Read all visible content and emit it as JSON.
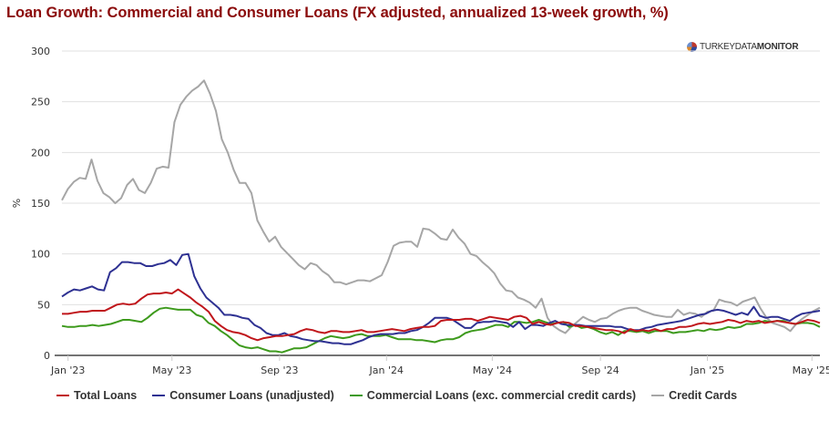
{
  "title": "Loan Growth: Commercial and Consumer Loans (FX adjusted, annualized 13-week growth, %)",
  "logo": {
    "light": "TURKEYDATA",
    "bold": "MONITOR"
  },
  "chart_data": {
    "type": "line",
    "title": "Loan Growth: Commercial and Consumer Loans (FX adjusted, annualized 13-week growth, %)",
    "xlabel": "",
    "ylabel": "%",
    "ylim": [
      0,
      300
    ],
    "yticks": [
      0,
      50,
      100,
      150,
      200,
      250,
      300
    ],
    "grid": true,
    "legend_position": "bottom",
    "x_unit": "weeks since Jan 2023 (approx.)",
    "x_range": [
      -1,
      123
    ],
    "xticks": [
      {
        "label": "Jan '23",
        "x": 0
      },
      {
        "label": "May '23",
        "x": 17
      },
      {
        "label": "Sep '23",
        "x": 34.6
      },
      {
        "label": "Jan '24",
        "x": 52.1
      },
      {
        "label": "May '24",
        "x": 69.4
      },
      {
        "label": "Sep '24",
        "x": 87.1
      },
      {
        "label": "Jan '25",
        "x": 104.6
      },
      {
        "label": "May '25",
        "x": 121.7
      }
    ],
    "series": [
      {
        "name": "Total Loans",
        "color": "#c0161b",
        "values": [
          41,
          41,
          42,
          43,
          43,
          44,
          44,
          44,
          47,
          50,
          51,
          50,
          51,
          56,
          60,
          61,
          61,
          62,
          61,
          65,
          61,
          57,
          52,
          48,
          43,
          34,
          29,
          25,
          23,
          22,
          20,
          17,
          15,
          17,
          18,
          19,
          19,
          20,
          21,
          24,
          26,
          25,
          23,
          22,
          24,
          24,
          23,
          23,
          24,
          25,
          23,
          23,
          24,
          25,
          26,
          25,
          24,
          26,
          27,
          28,
          28,
          29,
          34,
          35,
          35,
          35,
          36,
          36,
          34,
          36,
          38,
          37,
          36,
          35,
          38,
          39,
          37,
          31,
          33,
          31,
          30,
          32,
          33,
          32,
          29,
          29,
          28,
          27,
          26,
          25,
          25,
          24,
          22,
          26,
          24,
          25,
          24,
          26,
          24,
          26,
          26,
          28,
          28,
          29,
          31,
          32,
          31,
          32,
          33,
          35,
          34,
          32,
          34,
          33,
          34,
          32,
          33,
          34,
          33,
          32,
          31,
          33,
          35,
          34,
          32
        ]
      },
      {
        "name": "Consumer Loans (unadjusted)",
        "color": "#2e3192",
        "values": [
          58,
          62,
          65,
          64,
          66,
          68,
          65,
          64,
          82,
          86,
          92,
          92,
          91,
          91,
          88,
          88,
          90,
          91,
          94,
          89,
          99,
          100,
          78,
          66,
          57,
          52,
          47,
          40,
          40,
          39,
          37,
          36,
          30,
          27,
          22,
          20,
          20,
          22,
          19,
          18,
          16,
          15,
          14,
          14,
          13,
          12,
          12,
          11,
          11,
          13,
          15,
          18,
          20,
          21,
          21,
          21,
          22,
          22,
          24,
          25,
          28,
          32,
          37,
          37,
          37,
          35,
          31,
          27,
          27,
          32,
          33,
          33,
          34,
          33,
          32,
          28,
          33,
          26,
          30,
          30,
          29,
          32,
          34,
          31,
          30,
          30,
          30,
          29,
          29,
          29,
          29,
          29,
          28,
          28,
          26,
          25,
          25,
          27,
          28,
          30,
          31,
          32,
          33,
          34,
          36,
          38,
          40,
          41,
          44,
          45,
          44,
          42,
          40,
          42,
          40,
          48,
          39,
          37,
          38,
          38,
          36,
          34,
          38,
          41,
          42,
          43,
          44
        ]
      },
      {
        "name": "Commercial Loans (exc. commercial credit cards)",
        "color": "#3d9a1c",
        "values": [
          29,
          28,
          28,
          29,
          29,
          30,
          29,
          30,
          31,
          33,
          35,
          35,
          34,
          33,
          37,
          42,
          46,
          47,
          46,
          45,
          45,
          45,
          40,
          38,
          32,
          29,
          24,
          20,
          15,
          10,
          8,
          7,
          8,
          6,
          4,
          4,
          3,
          5,
          7,
          7,
          8,
          11,
          14,
          17,
          19,
          18,
          17,
          18,
          20,
          21,
          19,
          19,
          19,
          20,
          18,
          16,
          16,
          16,
          15,
          15,
          14,
          13,
          15,
          16,
          16,
          18,
          22,
          24,
          25,
          26,
          28,
          30,
          30,
          28,
          33,
          33,
          32,
          33,
          35,
          33,
          31,
          32,
          33,
          28,
          30,
          27,
          28,
          26,
          23,
          21,
          23,
          20,
          24,
          24,
          23,
          24,
          22,
          24,
          24,
          24,
          22,
          23,
          23,
          24,
          25,
          24,
          26,
          25,
          26,
          28,
          27,
          28,
          31,
          31,
          32,
          34,
          33,
          34,
          34,
          32,
          31,
          32,
          32,
          31,
          28
        ]
      },
      {
        "name": "Credit Cards",
        "color": "#a6a6a6",
        "values": [
          153,
          164,
          171,
          175,
          174,
          193,
          172,
          160,
          156,
          150,
          155,
          168,
          174,
          163,
          160,
          170,
          184,
          186,
          185,
          230,
          247,
          255,
          261,
          265,
          271,
          258,
          241,
          213,
          200,
          183,
          170,
          170,
          160,
          133,
          122,
          112,
          117,
          107,
          101,
          95,
          89,
          85,
          91,
          89,
          83,
          79,
          72,
          72,
          70,
          72,
          74,
          74,
          73,
          76,
          79,
          92,
          108,
          111,
          112,
          112,
          107,
          125,
          124,
          120,
          115,
          114,
          124,
          116,
          110,
          100,
          98,
          92,
          87,
          81,
          71,
          64,
          63,
          57,
          55,
          52,
          47,
          56,
          37,
          29,
          25,
          22,
          28,
          33,
          38,
          35,
          33,
          36,
          37,
          41,
          44,
          46,
          47,
          47,
          44,
          42,
          40,
          39,
          38,
          38,
          45,
          40,
          42,
          41,
          38,
          43,
          44,
          55,
          53,
          52,
          49,
          53,
          55,
          57,
          46,
          37,
          32,
          30,
          28,
          24,
          31,
          36,
          40,
          44,
          47
        ]
      }
    ]
  }
}
